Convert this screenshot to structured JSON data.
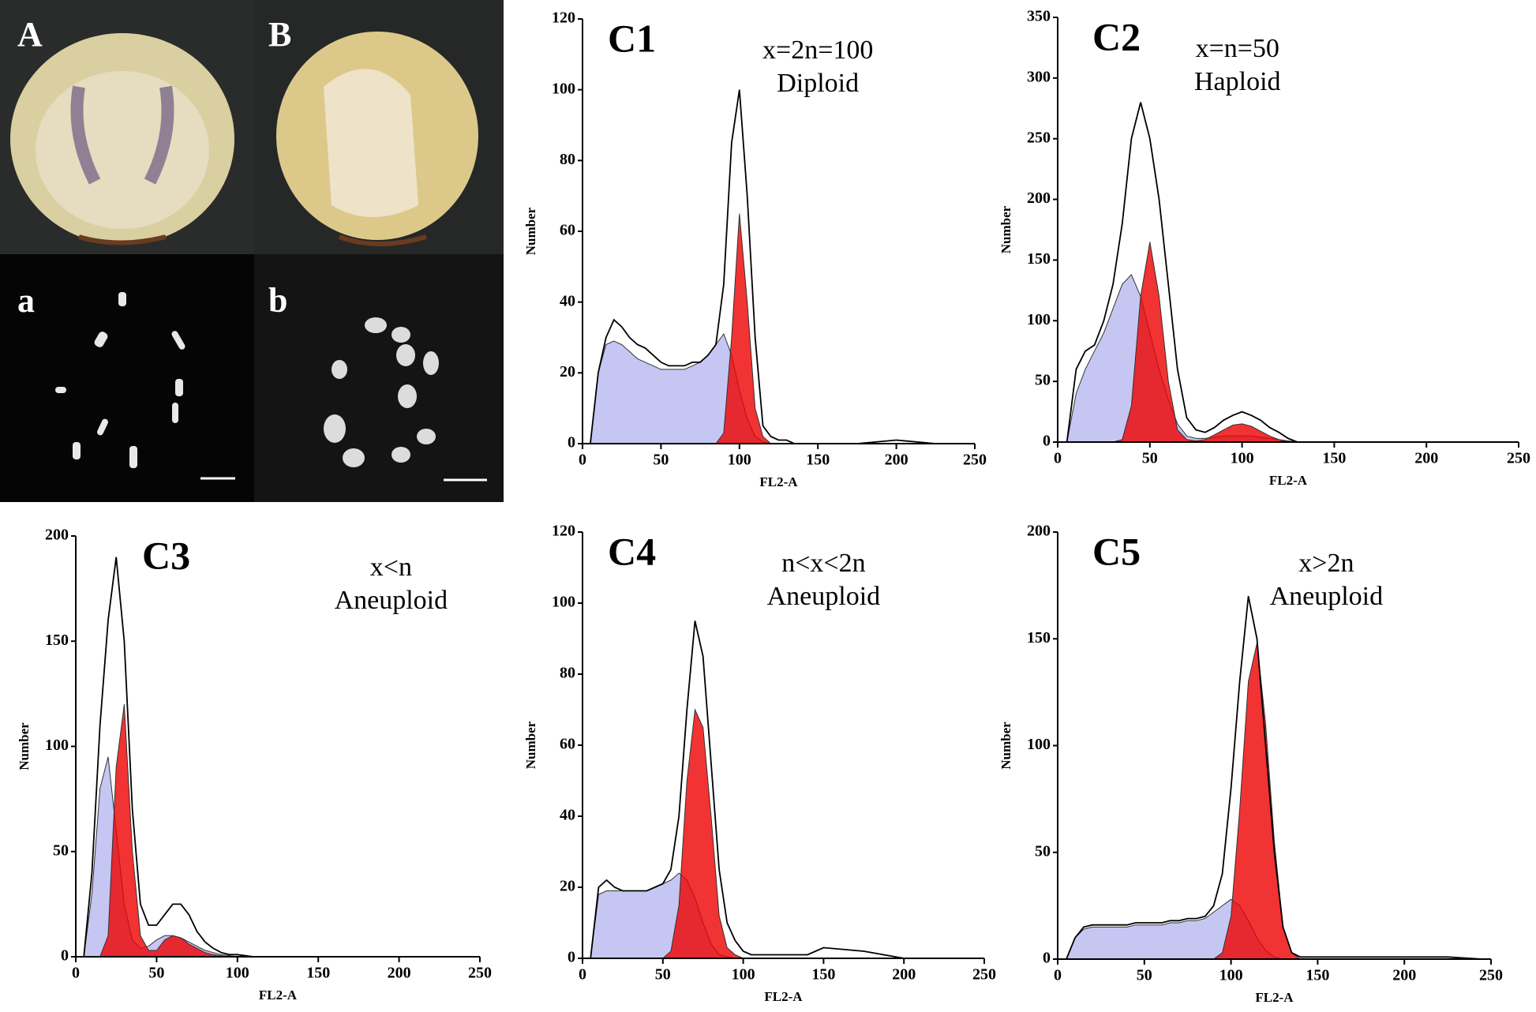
{
  "photos": {
    "labels": [
      "A",
      "B",
      "a",
      "b"
    ]
  },
  "chart_data": [
    {
      "type": "histogram",
      "label": "C1",
      "annotations": [
        "x=2n=100",
        "Diploid"
      ],
      "xlabel": "FL2-A",
      "ylabel": "Number",
      "xlim": [
        0,
        250
      ],
      "xticks": [
        0,
        50,
        100,
        150,
        200,
        250
      ],
      "ylim": [
        0,
        120
      ],
      "yticks": [
        0,
        20,
        40,
        60,
        80,
        100,
        120
      ],
      "x": [
        5,
        10,
        15,
        20,
        25,
        30,
        35,
        40,
        45,
        50,
        55,
        60,
        65,
        70,
        75,
        80,
        85,
        90,
        95,
        100,
        105,
        110,
        115,
        120,
        125,
        130,
        135,
        140,
        145,
        150,
        175,
        200,
        225,
        245
      ],
      "series": [
        {
          "kind": "area",
          "color": "#b8b8f0",
          "values": [
            0,
            20,
            28,
            29,
            28,
            26,
            24,
            23,
            22,
            21,
            21,
            21,
            21,
            22,
            23,
            25,
            28,
            31,
            25,
            15,
            7,
            2,
            0.5,
            0,
            0,
            0,
            0,
            0,
            0,
            0,
            0,
            0,
            0,
            0
          ]
        },
        {
          "kind": "area",
          "color": "#ee0000",
          "values": [
            0,
            0,
            0,
            0,
            0,
            0,
            0,
            0,
            0,
            0,
            0,
            0,
            0,
            0,
            0,
            0,
            0,
            3,
            30,
            65,
            40,
            10,
            2,
            0,
            0,
            0,
            0,
            0,
            0,
            0,
            0,
            0,
            0,
            0
          ]
        },
        {
          "kind": "line",
          "color": "#000000",
          "values": [
            0,
            20,
            30,
            35,
            33,
            30,
            28,
            27,
            25,
            23,
            22,
            22,
            22,
            23,
            23,
            25,
            28,
            45,
            85,
            100,
            70,
            30,
            5,
            2,
            1,
            1,
            0,
            0,
            0,
            0,
            0,
            1,
            0,
            0
          ]
        }
      ]
    },
    {
      "type": "histogram",
      "label": "C2",
      "annotations": [
        "x=n=50",
        "Haploid"
      ],
      "xlabel": "FL2-A",
      "ylabel": "Number",
      "xlim": [
        0,
        250
      ],
      "xticks": [
        0,
        50,
        100,
        150,
        200,
        250
      ],
      "ylim": [
        0,
        350
      ],
      "yticks": [
        0,
        50,
        100,
        150,
        200,
        250,
        300,
        350
      ],
      "x": [
        5,
        10,
        15,
        20,
        25,
        30,
        35,
        40,
        45,
        50,
        55,
        60,
        65,
        70,
        75,
        80,
        85,
        90,
        95,
        100,
        105,
        110,
        115,
        120,
        125,
        130,
        135,
        140,
        145,
        150,
        175,
        200,
        225,
        245
      ],
      "series": [
        {
          "kind": "area",
          "color": "#b8b8f0",
          "values": [
            0,
            40,
            60,
            75,
            90,
            110,
            130,
            138,
            120,
            90,
            60,
            35,
            15,
            5,
            3,
            3,
            4,
            5,
            5,
            5,
            5,
            4,
            3,
            2,
            1,
            0,
            0,
            0,
            0,
            0,
            0,
            0,
            0,
            0
          ]
        },
        {
          "kind": "area",
          "color": "#ee0000",
          "values": [
            0,
            0,
            0,
            0,
            0,
            0,
            2,
            30,
            120,
            165,
            120,
            50,
            10,
            2,
            1,
            2,
            6,
            10,
            14,
            15,
            13,
            9,
            5,
            2,
            0,
            0,
            0,
            0,
            0,
            0,
            0,
            0,
            0,
            0
          ]
        },
        {
          "kind": "line",
          "color": "#000000",
          "values": [
            0,
            60,
            75,
            80,
            100,
            130,
            180,
            250,
            280,
            250,
            200,
            130,
            60,
            20,
            10,
            8,
            12,
            18,
            22,
            25,
            22,
            18,
            12,
            8,
            3,
            0,
            0,
            0,
            0,
            0,
            0,
            0,
            0,
            0
          ]
        }
      ]
    },
    {
      "type": "histogram",
      "label": "C3",
      "annotations": [
        "x<n",
        "Aneuploid"
      ],
      "xlabel": "FL2-A",
      "ylabel": "Number",
      "xlim": [
        0,
        250
      ],
      "xticks": [
        0,
        50,
        100,
        150,
        200,
        250
      ],
      "ylim": [
        0,
        200
      ],
      "yticks": [
        0,
        50,
        100,
        150,
        200
      ],
      "x": [
        5,
        10,
        15,
        20,
        25,
        30,
        35,
        40,
        45,
        50,
        55,
        60,
        65,
        70,
        75,
        80,
        85,
        90,
        95,
        100,
        105,
        110,
        115,
        120,
        125,
        130,
        135,
        140,
        145,
        150,
        175,
        200,
        225,
        245
      ],
      "series": [
        {
          "kind": "area",
          "color": "#b8b8f0",
          "values": [
            0,
            30,
            80,
            95,
            60,
            25,
            8,
            4,
            5,
            8,
            10,
            10,
            9,
            7,
            5,
            3,
            2,
            1,
            0.5,
            0,
            0,
            0,
            0,
            0,
            0,
            0,
            0,
            0,
            0,
            0,
            0,
            0,
            0,
            0
          ]
        },
        {
          "kind": "area",
          "color": "#ee0000",
          "values": [
            0,
            0,
            0,
            10,
            90,
            120,
            50,
            10,
            3,
            3,
            8,
            10,
            9,
            6,
            4,
            2,
            1,
            0.5,
            0,
            0,
            0,
            0,
            0,
            0,
            0,
            0,
            0,
            0,
            0,
            0,
            0,
            0,
            0,
            0
          ]
        },
        {
          "kind": "line",
          "color": "#000000",
          "values": [
            0,
            40,
            110,
            160,
            190,
            150,
            70,
            25,
            15,
            15,
            20,
            25,
            25,
            20,
            12,
            7,
            4,
            2,
            1,
            1,
            0.5,
            0,
            0,
            0,
            0,
            0,
            0,
            0,
            0,
            0,
            0,
            0,
            0,
            0
          ]
        }
      ]
    },
    {
      "type": "histogram",
      "label": "C4",
      "annotations": [
        "n<x<2n",
        "Aneuploid"
      ],
      "xlabel": "FL2-A",
      "ylabel": "Number",
      "xlim": [
        0,
        250
      ],
      "xticks": [
        0,
        50,
        100,
        150,
        200,
        250
      ],
      "ylim": [
        0,
        120
      ],
      "yticks": [
        0,
        20,
        40,
        60,
        80,
        100,
        120
      ],
      "x": [
        5,
        10,
        15,
        20,
        25,
        30,
        35,
        40,
        45,
        50,
        55,
        60,
        65,
        70,
        75,
        80,
        85,
        90,
        95,
        100,
        105,
        110,
        115,
        120,
        125,
        130,
        135,
        140,
        145,
        150,
        175,
        200,
        225,
        245
      ],
      "series": [
        {
          "kind": "area",
          "color": "#b8b8f0",
          "values": [
            0,
            18,
            19,
            19,
            19,
            19,
            19,
            19,
            20,
            21,
            22,
            24,
            22,
            17,
            10,
            4,
            1,
            0.5,
            0,
            0,
            0,
            0,
            0,
            0,
            0,
            0,
            0,
            0,
            0,
            0,
            0,
            0,
            0,
            0
          ]
        },
        {
          "kind": "area",
          "color": "#ee0000",
          "values": [
            0,
            0,
            0,
            0,
            0,
            0,
            0,
            0,
            0,
            0,
            2,
            15,
            50,
            70,
            65,
            40,
            12,
            3,
            1,
            0,
            0,
            0,
            0,
            0,
            0,
            0,
            0,
            0,
            0,
            0,
            0,
            0,
            0,
            0
          ]
        },
        {
          "kind": "line",
          "color": "#000000",
          "values": [
            0,
            20,
            22,
            20,
            19,
            19,
            19,
            19,
            20,
            21,
            25,
            40,
            70,
            95,
            85,
            55,
            25,
            10,
            5,
            2,
            1,
            1,
            1,
            1,
            1,
            1,
            1,
            1,
            2,
            3,
            2,
            0,
            0,
            0
          ]
        }
      ]
    },
    {
      "type": "histogram",
      "label": "C5",
      "annotations": [
        "x>2n",
        "Aneuploid"
      ],
      "xlabel": "FL2-A",
      "ylabel": "Number",
      "xlim": [
        0,
        250
      ],
      "xticks": [
        0,
        50,
        100,
        150,
        200,
        250
      ],
      "ylim": [
        0,
        200
      ],
      "yticks": [
        0,
        50,
        100,
        150,
        200
      ],
      "x": [
        5,
        10,
        15,
        20,
        25,
        30,
        35,
        40,
        45,
        50,
        55,
        60,
        65,
        70,
        75,
        80,
        85,
        90,
        95,
        100,
        105,
        110,
        115,
        120,
        125,
        130,
        135,
        140,
        145,
        150,
        175,
        200,
        225,
        245
      ],
      "series": [
        {
          "kind": "area",
          "color": "#b8b8f0",
          "values": [
            0,
            10,
            14,
            15,
            15,
            15,
            15,
            15,
            16,
            16,
            16,
            16,
            17,
            17,
            18,
            18,
            19,
            22,
            25,
            28,
            25,
            18,
            10,
            4,
            1,
            0,
            0,
            0,
            0,
            0,
            0,
            0,
            0,
            0
          ]
        },
        {
          "kind": "area",
          "color": "#ee0000",
          "values": [
            0,
            0,
            0,
            0,
            0,
            0,
            0,
            0,
            0,
            0,
            0,
            0,
            0,
            0,
            0,
            0,
            0,
            0,
            3,
            20,
            70,
            130,
            148,
            110,
            55,
            15,
            3,
            0,
            0,
            0,
            0,
            0,
            0,
            0
          ]
        },
        {
          "kind": "line",
          "color": "#000000",
          "values": [
            0,
            10,
            15,
            16,
            16,
            16,
            16,
            16,
            17,
            17,
            17,
            17,
            18,
            18,
            19,
            19,
            20,
            25,
            40,
            80,
            130,
            170,
            150,
            100,
            50,
            15,
            3,
            1,
            1,
            1,
            1,
            1,
            1,
            0
          ]
        }
      ]
    }
  ]
}
